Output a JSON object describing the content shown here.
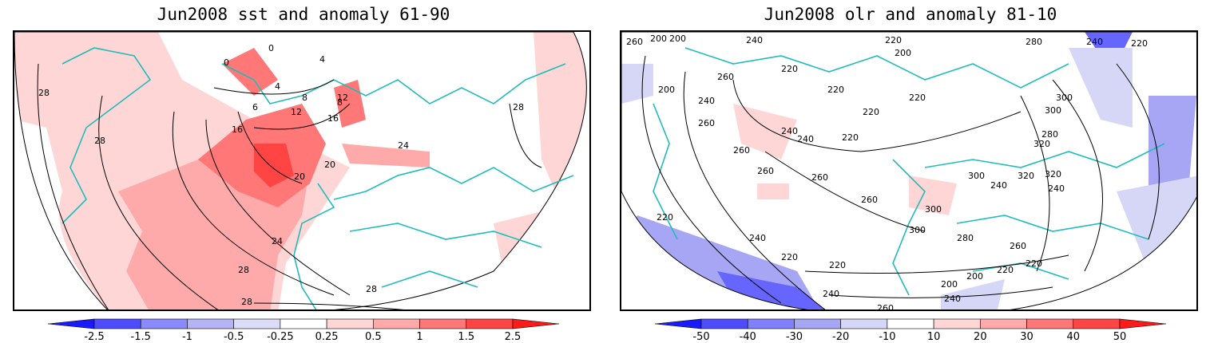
{
  "left_panel": {
    "title": "Jun2008 sst and anomaly 61-90",
    "contour_labels": [
      "28",
      "28",
      "20",
      "0",
      "0",
      "4",
      "4",
      "8",
      "8",
      "6",
      "12",
      "12",
      "16",
      "16",
      "20",
      "24",
      "24",
      "28",
      "28",
      "28",
      "28"
    ],
    "colorbar_ticks": [
      "-2.5",
      "-1.5",
      "-1",
      "-0.5",
      "-0.25",
      "0.25",
      "0.5",
      "1",
      "1.5",
      "2.5"
    ],
    "colorbar_colors": [
      "#1a1aff",
      "#4d4dff",
      "#8a8aff",
      "#b3b3f5",
      "#dcdcf7",
      "#ffffff",
      "#ffd6d6",
      "#ffaaaa",
      "#ff7777",
      "#ff4444",
      "#ff1a1a"
    ]
  },
  "right_panel": {
    "title": "Jun2008 olr and anomaly 81-10",
    "contour_labels": [
      "260",
      "200",
      "200",
      "240",
      "260",
      "220",
      "220",
      "220",
      "280",
      "240",
      "220",
      "200",
      "220",
      "200",
      "240",
      "260",
      "300",
      "300",
      "240",
      "220",
      "220",
      "260",
      "280",
      "300",
      "320",
      "320",
      "320",
      "240",
      "240",
      "260",
      "260",
      "260",
      "240",
      "300",
      "220",
      "300",
      "280",
      "260",
      "240",
      "220",
      "220",
      "200",
      "200",
      "220",
      "220",
      "240",
      "240",
      "260"
    ],
    "colorbar_ticks": [
      "-50",
      "-40",
      "-30",
      "-20",
      "-10",
      "10",
      "20",
      "30",
      "40",
      "50"
    ],
    "colorbar_colors": [
      "#1a1aff",
      "#4d4dff",
      "#8080ff",
      "#a6a6f5",
      "#d6d6f7",
      "#ffffff",
      "#ffd6d6",
      "#ffaaaa",
      "#ff7777",
      "#ff4444",
      "#ff1a1a"
    ]
  }
}
